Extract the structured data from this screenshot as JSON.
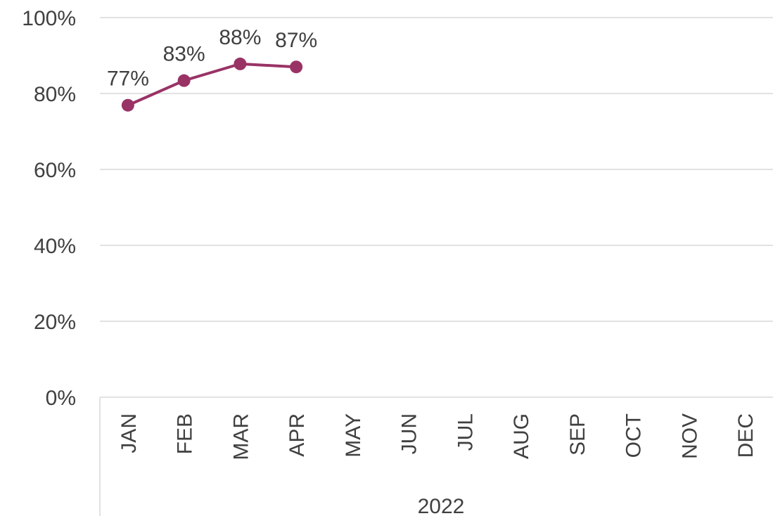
{
  "chart_data": {
    "type": "line",
    "categories": [
      "JAN",
      "FEB",
      "MAR",
      "APR",
      "MAY",
      "JUN",
      "JUL",
      "AUG",
      "SEP",
      "OCT",
      "NOV",
      "DEC"
    ],
    "group_label": "2022",
    "values": [
      76.9,
      83.4,
      87.8,
      87.0,
      null,
      null,
      null,
      null,
      null,
      null,
      null,
      null
    ],
    "value_labels": [
      "77%",
      "83%",
      "88%",
      "87%",
      null,
      null,
      null,
      null,
      null,
      null,
      null,
      null
    ],
    "color": "#993366",
    "ylim": [
      0,
      100
    ],
    "yticks": [
      {
        "value": 0,
        "label": "0%"
      },
      {
        "value": 20,
        "label": "20%"
      },
      {
        "value": 40,
        "label": "40%"
      },
      {
        "value": 60,
        "label": "60%"
      },
      {
        "value": 80,
        "label": "80%"
      },
      {
        "value": 100,
        "label": "100%"
      }
    ],
    "grid": true
  }
}
